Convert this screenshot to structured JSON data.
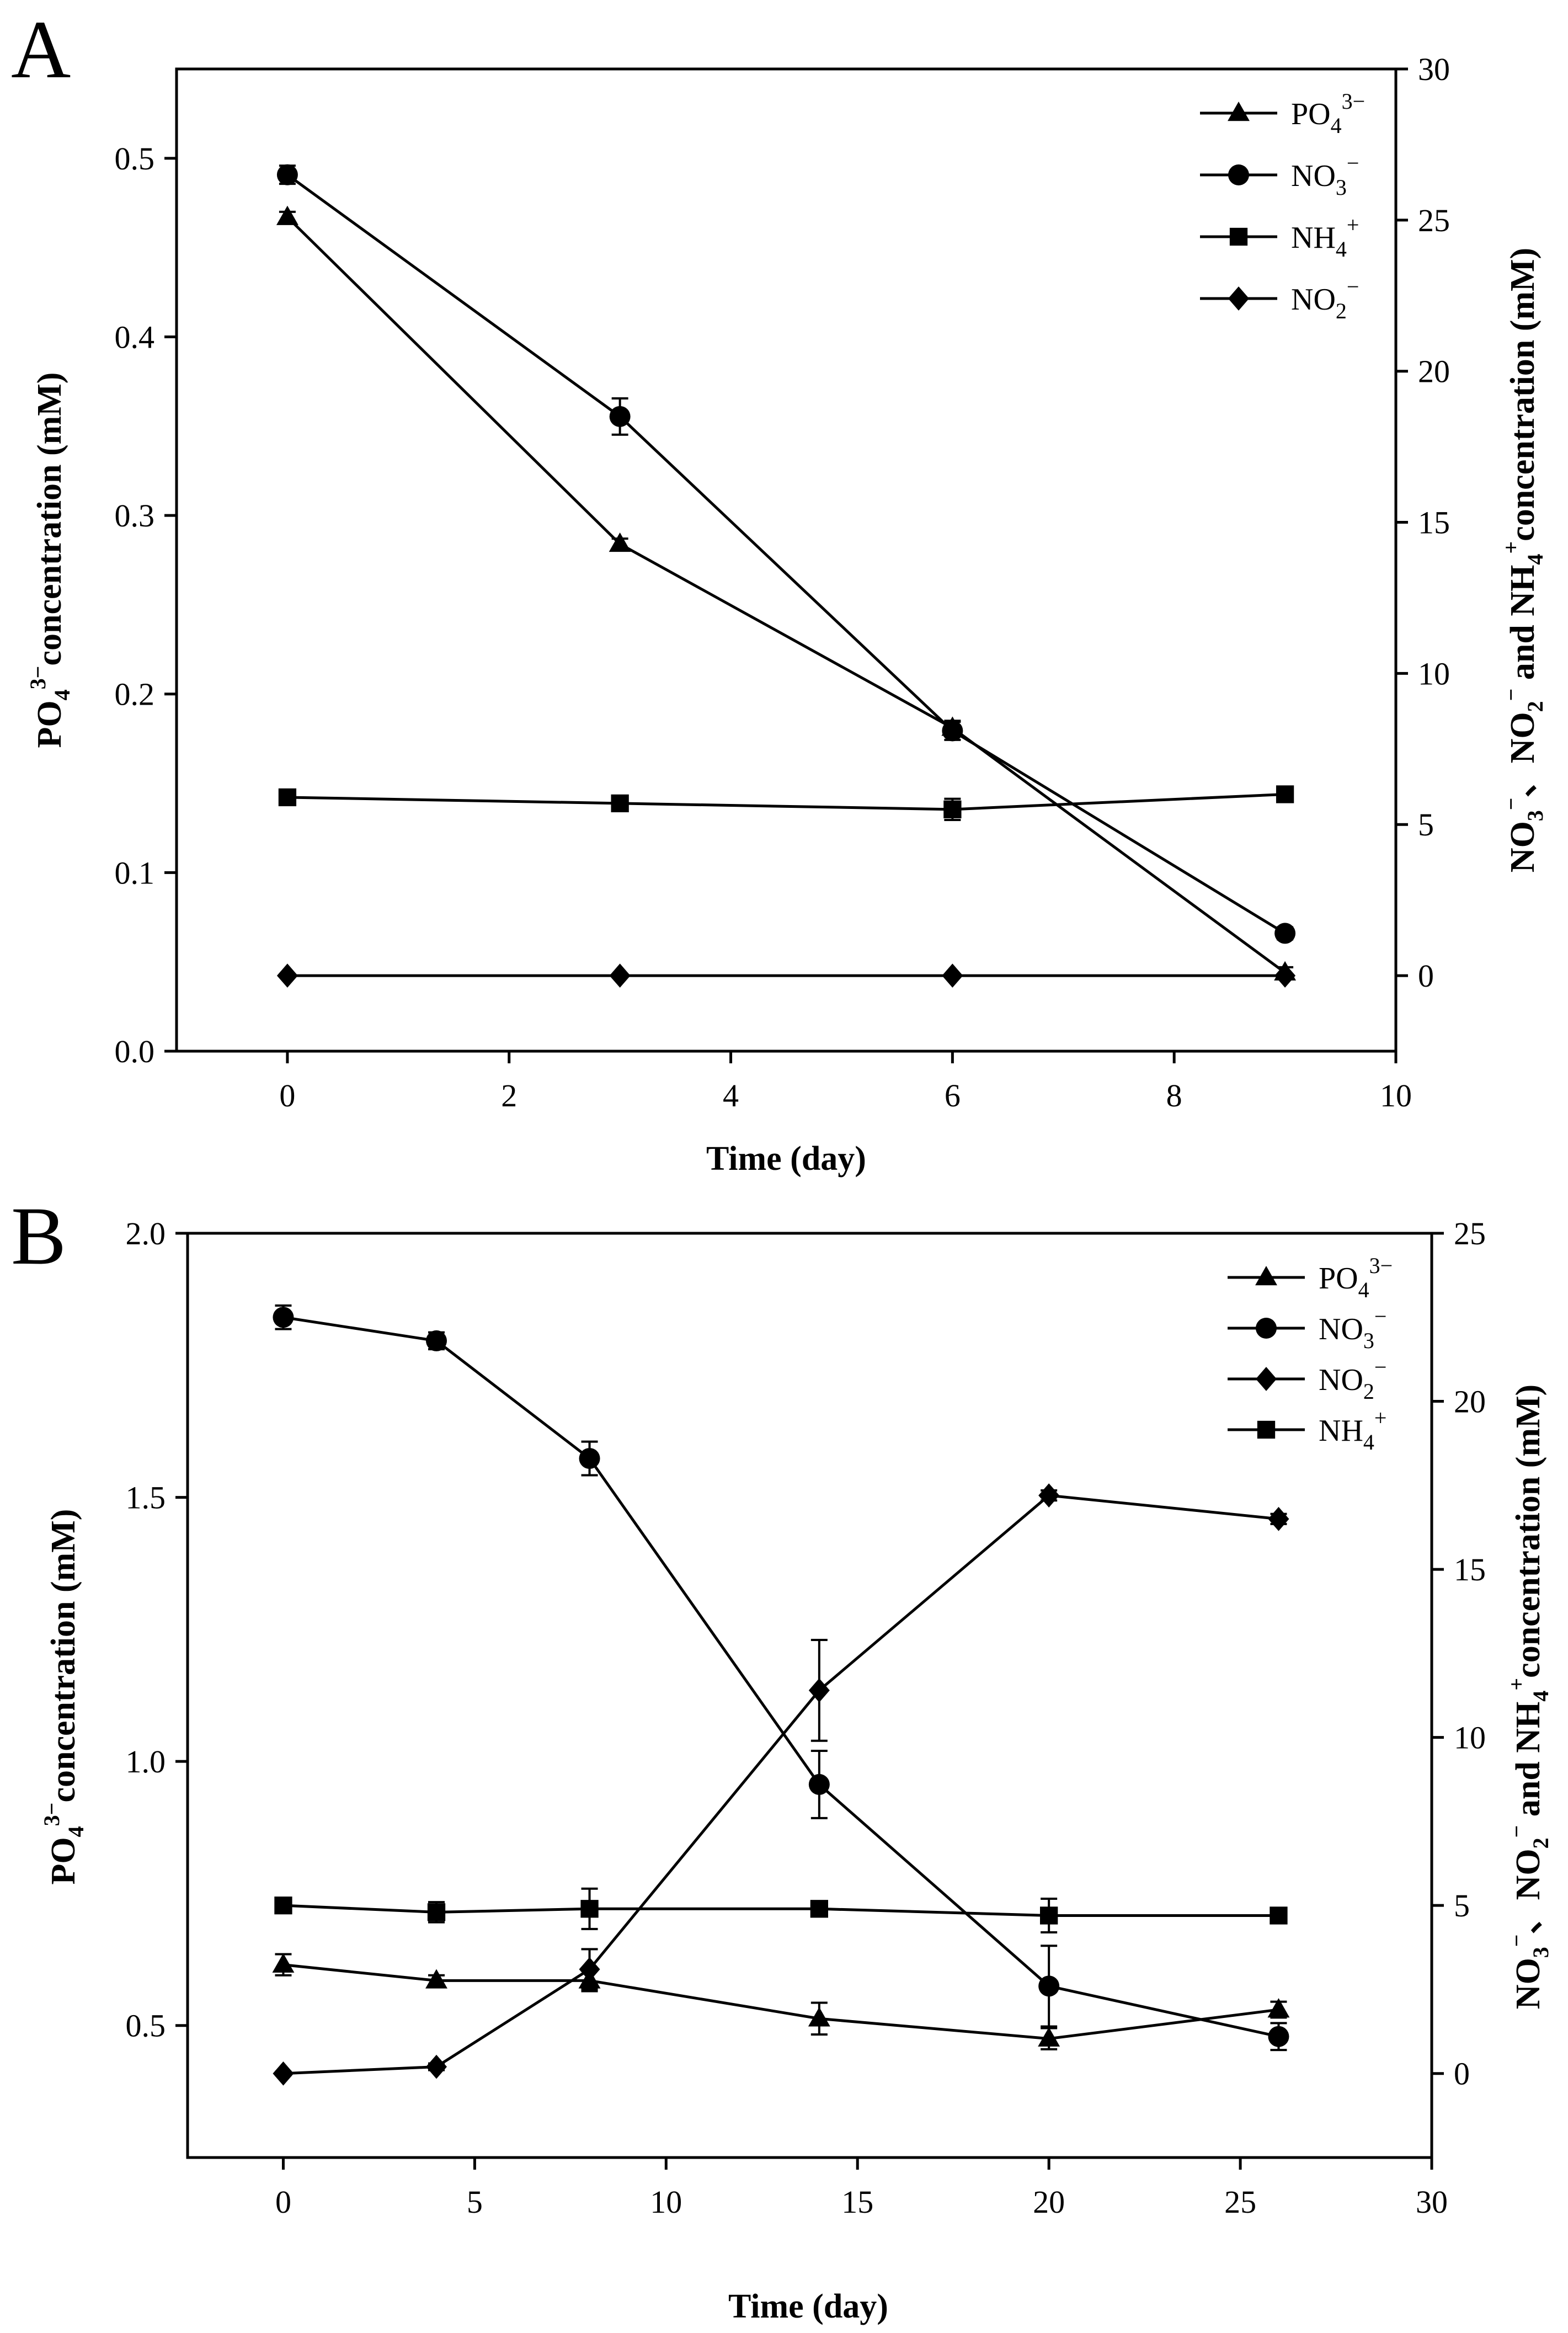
{
  "chart_data": [
    {
      "panel": "A",
      "type": "line",
      "xlabel": "Time (day)",
      "xlim": [
        -1,
        10
      ],
      "xticks": [
        0,
        2,
        4,
        6,
        8,
        10
      ],
      "x": [
        0,
        3,
        6,
        9
      ],
      "left_axis": {
        "label": "PO4 3− concentration (mM)",
        "ylim": [
          0.0,
          0.55
        ],
        "ticks": [
          "0.0",
          "0.1",
          "0.2",
          "0.3",
          "0.4",
          "0.5"
        ]
      },
      "right_axis": {
        "label": "NO3−、NO2− and NH4+ concentration (mM)",
        "ylim": [
          -2.5,
          30
        ],
        "ticks": [
          "0",
          "5",
          "10",
          "15",
          "20",
          "25",
          "30"
        ]
      },
      "series": [
        {
          "name": "PO43−",
          "marker": "triangle",
          "axis": "left",
          "values": [
            0.467,
            0.284,
            0.181,
            0.044
          ],
          "errors": [
            0.003,
            0.003,
            0.004,
            0.003
          ]
        },
        {
          "name": "NO3−",
          "marker": "circle",
          "axis": "right",
          "values": [
            26.5,
            18.5,
            8.1,
            1.4
          ],
          "errors": [
            0.3,
            0.6,
            0.3,
            0.2
          ]
        },
        {
          "name": "NH4+",
          "marker": "square",
          "axis": "right",
          "values": [
            5.9,
            5.7,
            5.5,
            6.0
          ],
          "errors": [
            0.15,
            0.2,
            0.35,
            0.2
          ]
        },
        {
          "name": "NO2−",
          "marker": "diamond",
          "axis": "right",
          "values": [
            0.0,
            0.0,
            0.0,
            0.0
          ],
          "errors": [
            0,
            0,
            0,
            0
          ]
        }
      ],
      "legend": [
        {
          "base": "PO",
          "sub": "4",
          "sup": "3−",
          "marker": "triangle"
        },
        {
          "base": "NO",
          "sub": "3",
          "sup": "−",
          "marker": "circle"
        },
        {
          "base": "NH",
          "sub": "4",
          "sup": "+",
          "marker": "square"
        },
        {
          "base": "NO",
          "sub": "2",
          "sup": "−",
          "marker": "diamond"
        }
      ],
      "legend_position": "top-right"
    },
    {
      "panel": "B",
      "type": "line",
      "xlabel": "Time (day)",
      "xlim": [
        -2.5,
        30
      ],
      "xticks": [
        0,
        5,
        10,
        15,
        20,
        25,
        30
      ],
      "x": [
        0,
        4,
        8,
        14,
        20,
        26
      ],
      "left_axis": {
        "label": "PO4 3− concentration (mM)",
        "ylim": [
          0.25,
          2.0
        ],
        "ticks": [
          "0.5",
          "1.0",
          "1.5",
          "2.0"
        ]
      },
      "right_axis": {
        "label": "NO3−、NO2− and NH4+ concentration (mM)",
        "ylim": [
          -2.5,
          25
        ],
        "ticks": [
          "0",
          "5",
          "10",
          "15",
          "20",
          "25"
        ]
      },
      "series": [
        {
          "name": "PO43−",
          "marker": "triangle",
          "axis": "left",
          "values": [
            0.615,
            0.585,
            0.585,
            0.513,
            0.475,
            0.53
          ],
          "errors": [
            0.02,
            0.01,
            0.02,
            0.03,
            0.02,
            0.015
          ]
        },
        {
          "name": "NO3−",
          "marker": "circle",
          "axis": "right",
          "values": [
            22.5,
            21.8,
            18.3,
            8.6,
            2.6,
            1.1
          ],
          "errors": [
            0.35,
            0.25,
            0.5,
            1.0,
            1.2,
            0.4
          ]
        },
        {
          "name": "NO2−",
          "marker": "diamond",
          "axis": "right",
          "values": [
            0.0,
            0.2,
            3.1,
            11.4,
            17.2,
            16.5
          ],
          "errors": [
            0.05,
            0.1,
            0.6,
            1.5,
            0.15,
            0.15
          ]
        },
        {
          "name": "NH4+",
          "marker": "square",
          "axis": "right",
          "values": [
            5.0,
            4.8,
            4.9,
            4.9,
            4.7,
            4.7
          ],
          "errors": [
            0.2,
            0.3,
            0.6,
            0.15,
            0.5,
            0.2
          ]
        }
      ],
      "legend": [
        {
          "base": "PO",
          "sub": "4",
          "sup": "3−",
          "marker": "triangle"
        },
        {
          "base": "NO",
          "sub": "3",
          "sup": "−",
          "marker": "circle"
        },
        {
          "base": "NO",
          "sub": "2",
          "sup": "−",
          "marker": "diamond"
        },
        {
          "base": "NH",
          "sub": "4",
          "sup": "+",
          "marker": "square"
        }
      ],
      "legend_position": "top-right"
    }
  ]
}
